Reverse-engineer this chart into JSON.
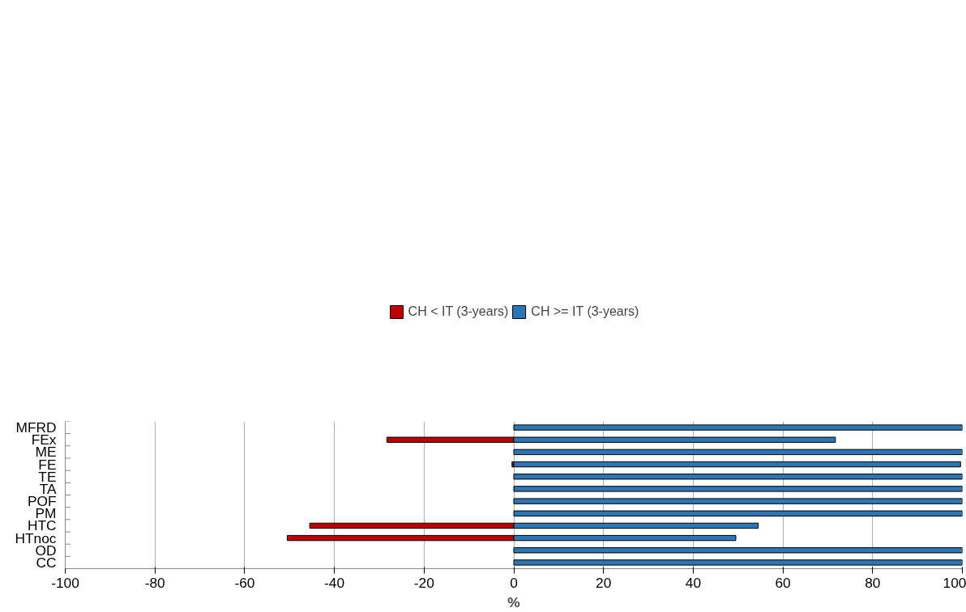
{
  "chart_data": {
    "type": "bar",
    "orientation": "horizontal",
    "xlabel": "%",
    "categories": [
      "MFRD",
      "FEx",
      "ME",
      "FE",
      "TE",
      "TA",
      "POF",
      "PM",
      "HTC",
      "HTnoc",
      "OD",
      "CC"
    ],
    "series": [
      {
        "name": "CH < IT (3-years)",
        "color": "#c00000",
        "values": [
          null,
          -28.3,
          null,
          -0.4,
          null,
          null,
          null,
          null,
          -45.5,
          -50.5,
          null,
          null
        ]
      },
      {
        "name": "CH >= IT (3-years)",
        "color": "#2e75b6",
        "values": [
          100,
          71.7,
          100,
          99.6,
          100,
          100,
          100,
          100,
          54.5,
          49.5,
          100,
          100
        ]
      }
    ],
    "xlim": [
      -100,
      100
    ],
    "xticks": [
      -100,
      -80,
      -60,
      -40,
      -20,
      0,
      20,
      40,
      60,
      80,
      100
    ],
    "grid": "x",
    "legend": "top"
  }
}
